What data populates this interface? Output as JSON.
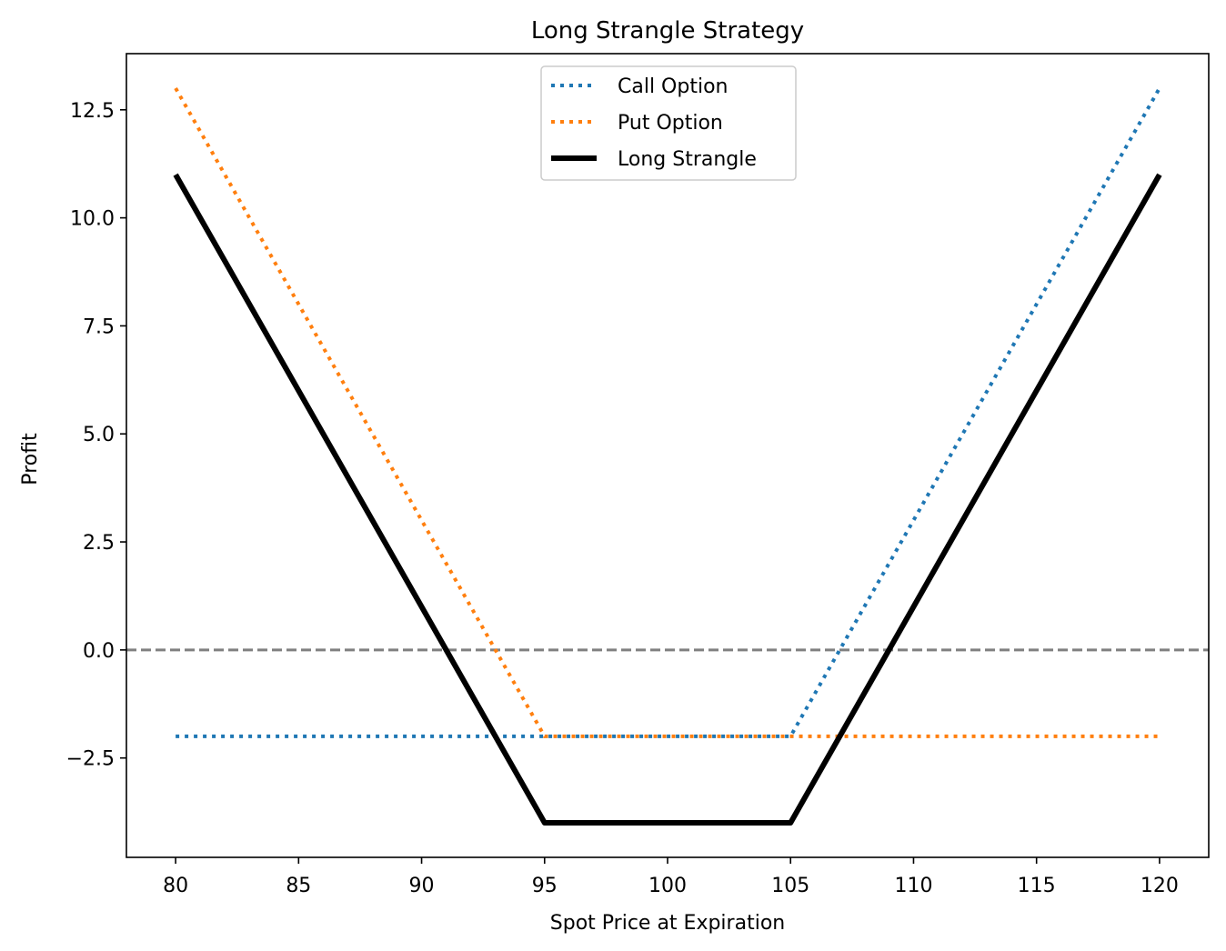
{
  "chart_data": {
    "type": "line",
    "title": "Long Strangle Strategy",
    "xlabel": "Spot Price at Expiration",
    "ylabel": "Profit",
    "xlim": [
      78,
      122
    ],
    "ylim": [
      -4.8,
      13.8
    ],
    "x_ticks": [
      80,
      85,
      90,
      95,
      100,
      105,
      110,
      115,
      120
    ],
    "y_ticks": [
      -2.5,
      0.0,
      2.5,
      5.0,
      7.5,
      10.0,
      12.5
    ],
    "x_tick_labels": [
      "80",
      "85",
      "90",
      "95",
      "100",
      "105",
      "110",
      "115",
      "120"
    ],
    "y_tick_labels": [
      "−2.5",
      "0.0",
      "2.5",
      "5.0",
      "7.5",
      "10.0",
      "12.5"
    ],
    "grid": false,
    "legend_position": "upper center",
    "series": [
      {
        "name": "Call Option",
        "color": "#1f77b4",
        "style": "dotted",
        "x": [
          80,
          95,
          105,
          120
        ],
        "y": [
          -2,
          -2,
          -2,
          13
        ]
      },
      {
        "name": "Put Option",
        "color": "#ff7f0e",
        "style": "dotted",
        "x": [
          80,
          95,
          105,
          120
        ],
        "y": [
          13,
          -2,
          -2,
          -2
        ]
      },
      {
        "name": "Long Strangle",
        "color": "#000000",
        "style": "solid",
        "x": [
          80,
          95,
          105,
          120
        ],
        "y": [
          11,
          -4,
          -4,
          11
        ]
      }
    ],
    "reference_line": {
      "y": 0,
      "color": "#808080",
      "style": "dashed"
    }
  }
}
